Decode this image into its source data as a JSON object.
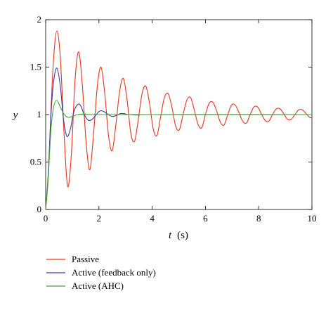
{
  "chart_data": {
    "type": "line",
    "title": "",
    "xlabel_var": "t",
    "xlabel_unit": "(s)",
    "ylabel": "y",
    "xlim": [
      0,
      10
    ],
    "ylim": [
      0,
      2
    ],
    "xticks": [
      0,
      2,
      4,
      6,
      8,
      10
    ],
    "yticks": [
      0,
      0.5,
      1,
      1.5,
      2
    ],
    "xtick_labels": [
      "0",
      "2",
      "4",
      "6",
      "8",
      "10"
    ],
    "ytick_labels": [
      "0",
      "0.5",
      "1",
      "1.5",
      "2"
    ],
    "grid": false,
    "legend_position": "bottom-left, below plot",
    "series": [
      {
        "name": "Passive",
        "color": "#e8321e",
        "points": [
          [
            0,
            0
          ],
          [
            0.1,
            0.35
          ],
          [
            0.2,
            1.05
          ],
          [
            0.3,
            1.6
          ],
          [
            0.42,
            1.88
          ],
          [
            0.55,
            1.6
          ],
          [
            0.7,
            0.75
          ],
          [
            0.83,
            0.24
          ],
          [
            0.97,
            0.6
          ],
          [
            1.1,
            1.35
          ],
          [
            1.24,
            1.66
          ],
          [
            1.38,
            1.3
          ],
          [
            1.52,
            0.7
          ],
          [
            1.66,
            0.42
          ],
          [
            1.8,
            0.8
          ],
          [
            1.94,
            1.3
          ],
          [
            2.08,
            1.5
          ],
          [
            2.22,
            1.22
          ],
          [
            2.36,
            0.78
          ],
          [
            2.5,
            0.62
          ],
          [
            2.64,
            0.9
          ],
          [
            2.78,
            1.25
          ],
          [
            2.92,
            1.38
          ],
          [
            3.06,
            1.15
          ],
          [
            3.2,
            0.8
          ],
          [
            3.34,
            0.72
          ],
          [
            3.48,
            0.95
          ],
          [
            3.62,
            1.22
          ],
          [
            3.76,
            1.3
          ],
          [
            3.9,
            1.12
          ],
          [
            4.04,
            0.85
          ],
          [
            4.18,
            0.78
          ],
          [
            4.32,
            0.98
          ],
          [
            4.46,
            1.18
          ],
          [
            4.6,
            1.22
          ],
          [
            4.74,
            1.08
          ],
          [
            4.88,
            0.88
          ],
          [
            5.02,
            0.84
          ],
          [
            5.16,
            1.0
          ],
          [
            5.3,
            1.15
          ],
          [
            5.44,
            1.18
          ],
          [
            5.58,
            1.05
          ],
          [
            5.72,
            0.9
          ],
          [
            5.86,
            0.86
          ],
          [
            6.0,
            1.0
          ],
          [
            6.14,
            1.12
          ],
          [
            6.28,
            1.13
          ],
          [
            6.42,
            1.04
          ],
          [
            6.56,
            0.92
          ],
          [
            6.7,
            0.89
          ],
          [
            6.84,
            1.0
          ],
          [
            6.98,
            1.1
          ],
          [
            7.12,
            1.1
          ],
          [
            7.26,
            1.02
          ],
          [
            7.4,
            0.93
          ],
          [
            7.54,
            0.91
          ],
          [
            7.68,
            1.0
          ],
          [
            7.82,
            1.08
          ],
          [
            7.96,
            1.08
          ],
          [
            8.1,
            1.01
          ],
          [
            8.24,
            0.94
          ],
          [
            8.38,
            0.93
          ],
          [
            8.52,
            1.0
          ],
          [
            8.66,
            1.06
          ],
          [
            8.8,
            1.06
          ],
          [
            8.94,
            1.01
          ],
          [
            9.08,
            0.95
          ],
          [
            9.22,
            0.95
          ],
          [
            9.36,
            1.0
          ],
          [
            9.5,
            1.05
          ],
          [
            9.64,
            1.05
          ],
          [
            9.78,
            1.01
          ],
          [
            9.92,
            0.97
          ],
          [
            10.0,
            0.97
          ]
        ]
      },
      {
        "name": "Active (feedback only)",
        "color": "#3a3aa8",
        "points": [
          [
            0,
            0
          ],
          [
            0.1,
            0.4
          ],
          [
            0.2,
            1.0
          ],
          [
            0.3,
            1.35
          ],
          [
            0.42,
            1.49
          ],
          [
            0.55,
            1.3
          ],
          [
            0.67,
            0.95
          ],
          [
            0.8,
            0.77
          ],
          [
            0.93,
            0.85
          ],
          [
            1.05,
            1.02
          ],
          [
            1.18,
            1.1
          ],
          [
            1.3,
            1.1
          ],
          [
            1.45,
            1.0
          ],
          [
            1.6,
            0.94
          ],
          [
            1.75,
            0.95
          ],
          [
            1.9,
            1.0
          ],
          [
            2.05,
            1.04
          ],
          [
            2.2,
            1.03
          ],
          [
            2.35,
            1.0
          ],
          [
            2.5,
            0.98
          ],
          [
            2.65,
            0.99
          ],
          [
            2.8,
            1.01
          ],
          [
            2.95,
            1.01
          ],
          [
            3.1,
            1.0
          ],
          [
            3.5,
            0.995
          ],
          [
            4.0,
            1.0
          ],
          [
            10.0,
            1.0
          ]
        ]
      },
      {
        "name": "Active (AHC)",
        "color": "#40a830",
        "points": [
          [
            0,
            0
          ],
          [
            0.1,
            0.35
          ],
          [
            0.2,
            0.85
          ],
          [
            0.3,
            1.08
          ],
          [
            0.42,
            1.15
          ],
          [
            0.55,
            1.08
          ],
          [
            0.7,
            1.0
          ],
          [
            0.85,
            0.97
          ],
          [
            1.0,
            0.98
          ],
          [
            1.2,
            1.0
          ],
          [
            1.5,
            1.005
          ],
          [
            2.0,
            1.0
          ],
          [
            10.0,
            1.0
          ]
        ]
      }
    ]
  }
}
